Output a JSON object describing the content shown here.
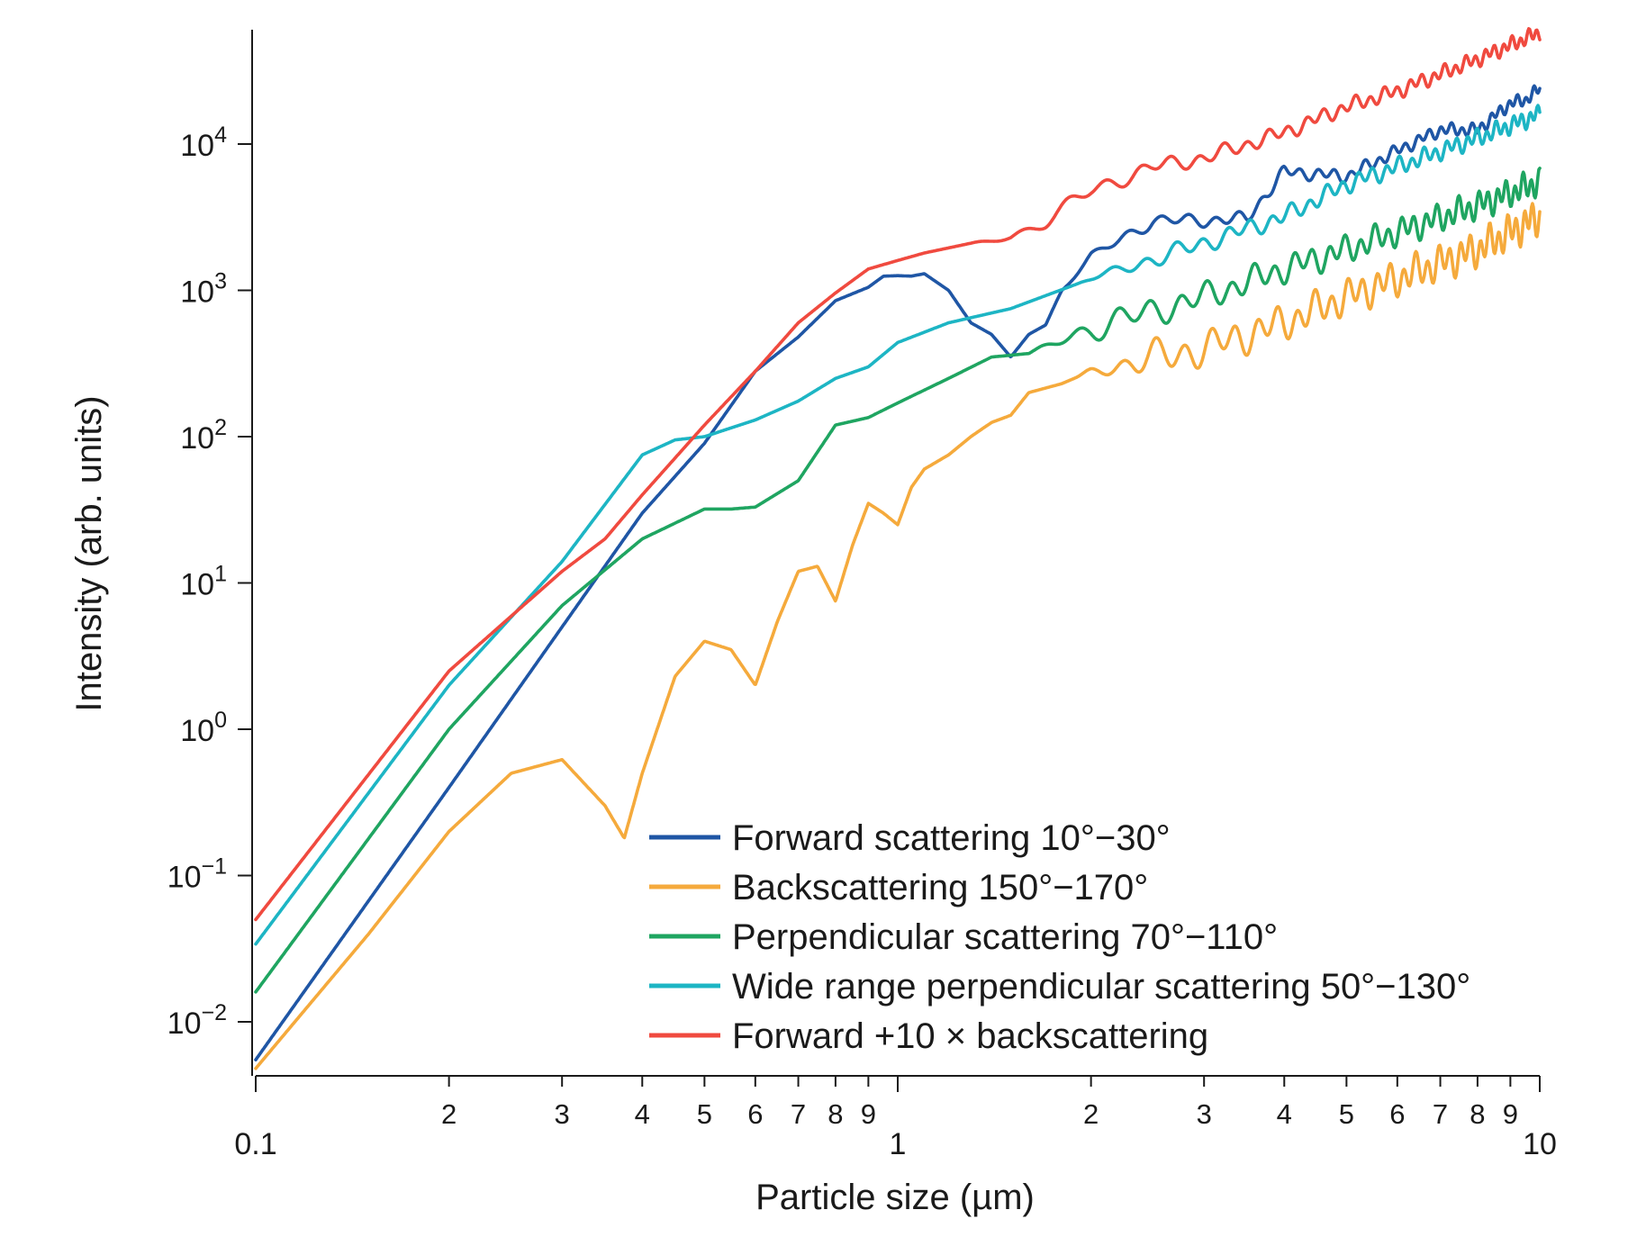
{
  "chart_data": {
    "type": "line",
    "title": "",
    "xlabel": "Particle size (µm)",
    "ylabel": "Intensity (arb. units)",
    "xscale": "log",
    "yscale": "log",
    "xlim": [
      0.1,
      10
    ],
    "ylim": [
      0.005,
      60000
    ],
    "x_major_ticks": [
      {
        "value": 0.1,
        "label": "0.1"
      },
      {
        "value": 1,
        "label": "1"
      },
      {
        "value": 10,
        "label": "10"
      }
    ],
    "x_minor_ticks": [
      {
        "value": 0.2,
        "label": "2"
      },
      {
        "value": 0.3,
        "label": "3"
      },
      {
        "value": 0.4,
        "label": "4"
      },
      {
        "value": 0.5,
        "label": "5"
      },
      {
        "value": 0.6,
        "label": "6"
      },
      {
        "value": 0.7,
        "label": "7"
      },
      {
        "value": 0.8,
        "label": "8"
      },
      {
        "value": 0.9,
        "label": "9"
      },
      {
        "value": 2,
        "label": "2"
      },
      {
        "value": 3,
        "label": "3"
      },
      {
        "value": 4,
        "label": "4"
      },
      {
        "value": 5,
        "label": "5"
      },
      {
        "value": 6,
        "label": "6"
      },
      {
        "value": 7,
        "label": "7"
      },
      {
        "value": 8,
        "label": "8"
      },
      {
        "value": 9,
        "label": "9"
      }
    ],
    "y_ticks": [
      {
        "exp": -2,
        "base": "10",
        "sup": "−2"
      },
      {
        "exp": -1,
        "base": "10",
        "sup": "−1"
      },
      {
        "exp": 0,
        "base": "10",
        "sup": "0"
      },
      {
        "exp": 1,
        "base": "10",
        "sup": "1"
      },
      {
        "exp": 2,
        "base": "10",
        "sup": "2"
      },
      {
        "exp": 3,
        "base": "10",
        "sup": "3"
      },
      {
        "exp": 4,
        "base": "10",
        "sup": "4"
      }
    ],
    "legend_position": "lower-right",
    "series": [
      {
        "name": "Forward scattering 10°−30°",
        "color": "#1f56a5",
        "ripple": 0.05,
        "ripple_start": 1.7,
        "points": [
          [
            0.1,
            0.0055
          ],
          [
            0.2,
            0.4
          ],
          [
            0.3,
            5
          ],
          [
            0.4,
            30
          ],
          [
            0.5,
            90
          ],
          [
            0.6,
            280
          ],
          [
            0.7,
            480
          ],
          [
            0.8,
            850
          ],
          [
            0.9,
            1050
          ],
          [
            0.95,
            1250
          ],
          [
            1.0,
            1260
          ],
          [
            1.05,
            1250
          ],
          [
            1.1,
            1300
          ],
          [
            1.2,
            1000
          ],
          [
            1.3,
            600
          ],
          [
            1.4,
            500
          ],
          [
            1.5,
            350
          ],
          [
            1.6,
            500
          ],
          [
            1.7,
            580
          ],
          [
            1.8,
            1000
          ],
          [
            2.0,
            1700
          ],
          [
            2.5,
            3000
          ],
          [
            3.0,
            3000
          ],
          [
            3.5,
            3100
          ],
          [
            4.0,
            6500
          ],
          [
            5.0,
            6000
          ],
          [
            6.0,
            9000
          ],
          [
            7.0,
            12500
          ],
          [
            8.0,
            12500
          ],
          [
            9.0,
            19000
          ],
          [
            9.5,
            20000
          ],
          [
            10.0,
            24000
          ]
        ]
      },
      {
        "name": "Backscattering 150°−170°",
        "color": "#f5aa3c",
        "ripple": 0.14,
        "ripple_start": 1.9,
        "points": [
          [
            0.1,
            0.0048
          ],
          [
            0.15,
            0.04
          ],
          [
            0.2,
            0.2
          ],
          [
            0.25,
            0.5
          ],
          [
            0.3,
            0.62
          ],
          [
            0.35,
            0.3
          ],
          [
            0.375,
            0.18
          ],
          [
            0.4,
            0.5
          ],
          [
            0.45,
            2.3
          ],
          [
            0.5,
            4
          ],
          [
            0.55,
            3.5
          ],
          [
            0.6,
            2
          ],
          [
            0.65,
            5.5
          ],
          [
            0.7,
            12
          ],
          [
            0.75,
            13
          ],
          [
            0.8,
            7.5
          ],
          [
            0.85,
            18
          ],
          [
            0.9,
            35
          ],
          [
            0.95,
            30
          ],
          [
            1.0,
            25
          ],
          [
            1.05,
            45
          ],
          [
            1.1,
            60
          ],
          [
            1.2,
            75
          ],
          [
            1.3,
            100
          ],
          [
            1.4,
            125
          ],
          [
            1.5,
            140
          ],
          [
            1.6,
            200
          ],
          [
            1.8,
            230
          ],
          [
            2.0,
            280
          ],
          [
            3.0,
            400
          ],
          [
            4.0,
            600
          ],
          [
            5.0,
            900
          ],
          [
            6.0,
            1200
          ],
          [
            8.0,
            1900
          ],
          [
            10.0,
            3200
          ]
        ]
      },
      {
        "name": "Perpendicular scattering 70°−110°",
        "color": "#1fa561",
        "ripple": 0.11,
        "ripple_start": 1.6,
        "points": [
          [
            0.1,
            0.016
          ],
          [
            0.2,
            1
          ],
          [
            0.3,
            7
          ],
          [
            0.4,
            20
          ],
          [
            0.5,
            32
          ],
          [
            0.55,
            32
          ],
          [
            0.6,
            33
          ],
          [
            0.7,
            50
          ],
          [
            0.8,
            120
          ],
          [
            0.9,
            135
          ],
          [
            1.0,
            170
          ],
          [
            1.2,
            250
          ],
          [
            1.4,
            350
          ],
          [
            1.6,
            370
          ],
          [
            2.0,
            550
          ],
          [
            3.0,
            900
          ],
          [
            4.0,
            1400
          ],
          [
            5.0,
            1900
          ],
          [
            6.0,
            2500
          ],
          [
            8.0,
            3800
          ],
          [
            10.0,
            5500
          ]
        ]
      },
      {
        "name": "Wide range perpendicular scattering 50°−130°",
        "color": "#1db5c4",
        "ripple": 0.07,
        "ripple_start": 1.9,
        "points": [
          [
            0.1,
            0.034
          ],
          [
            0.2,
            2
          ],
          [
            0.3,
            14
          ],
          [
            0.4,
            75
          ],
          [
            0.45,
            95
          ],
          [
            0.5,
            100
          ],
          [
            0.6,
            130
          ],
          [
            0.7,
            175
          ],
          [
            0.8,
            250
          ],
          [
            0.9,
            300
          ],
          [
            1.0,
            440
          ],
          [
            1.2,
            600
          ],
          [
            1.5,
            750
          ],
          [
            2.0,
            1200
          ],
          [
            3.0,
            2100
          ],
          [
            4.0,
            3200
          ],
          [
            5.0,
            5300
          ],
          [
            6.0,
            7000
          ],
          [
            8.0,
            11000
          ],
          [
            10.0,
            16000
          ]
        ]
      },
      {
        "name": "Forward +10 × backscattering",
        "color": "#f04a3f",
        "ripple": 0.06,
        "ripple_start": 1.3,
        "points": [
          [
            0.1,
            0.05
          ],
          [
            0.2,
            2.5
          ],
          [
            0.3,
            12
          ],
          [
            0.35,
            20
          ],
          [
            0.4,
            40
          ],
          [
            0.5,
            120
          ],
          [
            0.6,
            280
          ],
          [
            0.7,
            600
          ],
          [
            0.8,
            960
          ],
          [
            0.9,
            1400
          ],
          [
            1.0,
            1600
          ],
          [
            1.1,
            1800
          ],
          [
            1.2,
            1950
          ],
          [
            1.3,
            2100
          ],
          [
            1.5,
            2300
          ],
          [
            1.7,
            3000
          ],
          [
            2.0,
            4800
          ],
          [
            2.5,
            7000
          ],
          [
            3.0,
            8000
          ],
          [
            4.0,
            12000
          ],
          [
            5.0,
            18000
          ],
          [
            6.0,
            23000
          ],
          [
            8.0,
            38000
          ],
          [
            10.0,
            58000
          ]
        ]
      }
    ]
  }
}
